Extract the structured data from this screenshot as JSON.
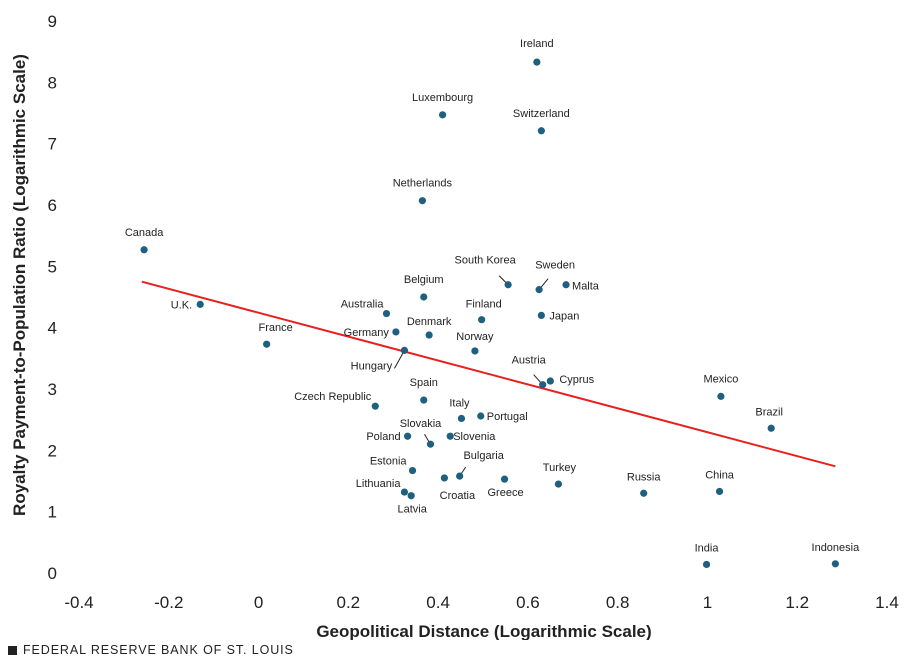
{
  "chart_data": {
    "type": "scatter",
    "xlabel": "Geopolitical Distance (Logarithmic Scale)",
    "ylabel": "Royalty Payment-to-Population Ratio (Logarithmic Scale)",
    "xlim": [
      -0.4,
      1.4
    ],
    "ylim": [
      0,
      9
    ],
    "xticks": [
      "-0.4",
      "-0.2",
      "0",
      "0.2",
      "0.4",
      "0.6",
      "0.8",
      "1",
      "1.2",
      "1.4"
    ],
    "yticks": [
      "0",
      "1",
      "2",
      "3",
      "4",
      "5",
      "6",
      "7",
      "8",
      "9"
    ],
    "grid": false,
    "point_color": "#1f5f7f",
    "trend_color": "#e8201f",
    "trendline": {
      "x": [
        -0.26,
        1.285
      ],
      "y": [
        4.75,
        1.74
      ]
    },
    "points": [
      {
        "label": "Ireland",
        "x": 0.62,
        "y": 8.33
      },
      {
        "label": "Luxembourg",
        "x": 0.41,
        "y": 7.47
      },
      {
        "label": "Switzerland",
        "x": 0.63,
        "y": 7.21
      },
      {
        "label": "Netherlands",
        "x": 0.365,
        "y": 6.07
      },
      {
        "label": "Canada",
        "x": -0.255,
        "y": 5.27
      },
      {
        "label": "South Korea",
        "x": 0.556,
        "y": 4.7
      },
      {
        "label": "Sweden",
        "x": 0.625,
        "y": 4.62
      },
      {
        "label": "Malta",
        "x": 0.685,
        "y": 4.7
      },
      {
        "label": "Belgium",
        "x": 0.368,
        "y": 4.5
      },
      {
        "label": "U.K.",
        "x": -0.13,
        "y": 4.38
      },
      {
        "label": "Australia",
        "x": 0.285,
        "y": 4.23
      },
      {
        "label": "Finland",
        "x": 0.497,
        "y": 4.13
      },
      {
        "label": "Japan",
        "x": 0.63,
        "y": 4.2
      },
      {
        "label": "Germany",
        "x": 0.306,
        "y": 3.93
      },
      {
        "label": "Denmark",
        "x": 0.38,
        "y": 3.88
      },
      {
        "label": "France",
        "x": 0.018,
        "y": 3.73
      },
      {
        "label": "Norway",
        "x": 0.482,
        "y": 3.62
      },
      {
        "label": "Hungary",
        "x": 0.325,
        "y": 3.63
      },
      {
        "label": "Austria",
        "x": 0.633,
        "y": 3.07
      },
      {
        "label": "Cyprus",
        "x": 0.65,
        "y": 3.13
      },
      {
        "label": "Mexico",
        "x": 1.03,
        "y": 2.88
      },
      {
        "label": "Spain",
        "x": 0.368,
        "y": 2.82
      },
      {
        "label": "Czech Republic",
        "x": 0.26,
        "y": 2.72
      },
      {
        "label": "Italy",
        "x": 0.452,
        "y": 2.52
      },
      {
        "label": "Portugal",
        "x": 0.495,
        "y": 2.56
      },
      {
        "label": "Brazil",
        "x": 1.142,
        "y": 2.36
      },
      {
        "label": "Slovakia",
        "x": 0.383,
        "y": 2.1
      },
      {
        "label": "Poland",
        "x": 0.332,
        "y": 2.23
      },
      {
        "label": "Slovenia",
        "x": 0.427,
        "y": 2.23
      },
      {
        "label": "Estonia",
        "x": 0.343,
        "y": 1.67
      },
      {
        "label": "Bulgaria",
        "x": 0.448,
        "y": 1.58
      },
      {
        "label": "Croatia",
        "x": 0.414,
        "y": 1.55
      },
      {
        "label": "Greece",
        "x": 0.548,
        "y": 1.53
      },
      {
        "label": "Turkey",
        "x": 0.668,
        "y": 1.45
      },
      {
        "label": "Russia",
        "x": 0.858,
        "y": 1.3
      },
      {
        "label": "China",
        "x": 1.027,
        "y": 1.33
      },
      {
        "label": "Lithuania",
        "x": 0.325,
        "y": 1.32
      },
      {
        "label": "Latvia",
        "x": 0.34,
        "y": 1.26
      },
      {
        "label": "India",
        "x": 0.998,
        "y": 0.14
      },
      {
        "label": "Indonesia",
        "x": 1.285,
        "y": 0.15
      }
    ]
  },
  "footer": {
    "text": "FEDERAL RESERVE BANK OF ST. LOUIS"
  }
}
